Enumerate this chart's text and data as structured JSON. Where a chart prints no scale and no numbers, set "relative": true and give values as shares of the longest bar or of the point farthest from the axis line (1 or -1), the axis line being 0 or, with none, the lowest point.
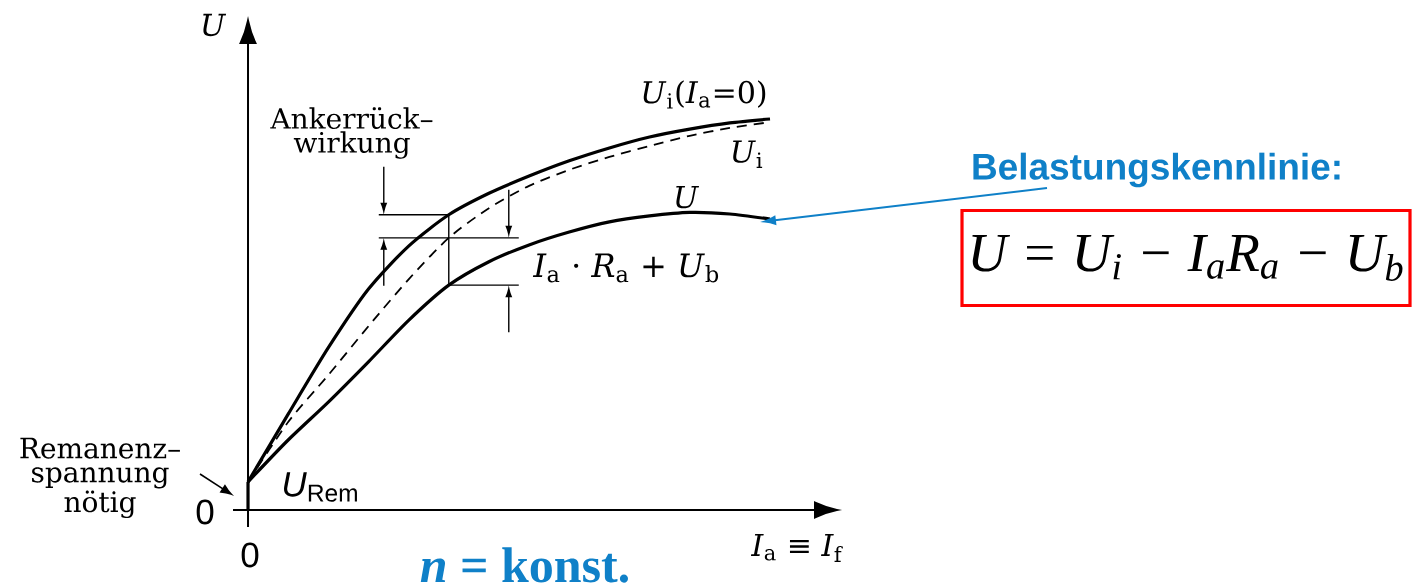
{
  "chart_data": {
    "type": "line",
    "relative": true,
    "categories": [
      null,
      null,
      null,
      null,
      null,
      null,
      null,
      null,
      null,
      null,
      null,
      null,
      null,
      null
    ],
    "series": [
      {
        "name": "*U*$_{i}$(*I*$_{a}$=0)",
        "color": "#000000",
        "line_style": "solid",
        "values": [
          0.072,
          0.245,
          0.415,
          0.565,
          0.675,
          0.755,
          0.81,
          0.854,
          0.893,
          0.926,
          0.954,
          0.974,
          0.99,
          1.0
        ]
      },
      {
        "name": "*U*$_{i}$",
        "color": "#000000",
        "line_style": "dashed",
        "values": [
          0.072,
          0.225,
          0.345,
          0.47,
          0.59,
          0.696,
          0.772,
          0.829,
          0.87,
          0.903,
          0.931,
          0.957,
          0.977,
          0.992
        ]
      },
      {
        "name": "*U*",
        "color": "#000000",
        "line_style": "solid",
        "values": [
          0.072,
          0.179,
          0.276,
          0.379,
          0.485,
          0.575,
          0.635,
          0.678,
          0.711,
          0.737,
          0.752,
          0.761,
          0.757,
          0.744
        ]
      }
    ],
    "xlabel": "*I*$_{a}$ ≡ *I*$_{f}$",
    "ylabel": "*U*",
    "annotations": [
      "0",
      "0",
      "Ankerrück– wirkung",
      "*I*$_{a}$ · *R*$_{a}$ + *U*$_{b}$",
      "Remanenz– spannung nötig",
      "*U*$_{Rem}$",
      "Belastungskennlinie:",
      "U = U$_{i}$ − I$_{a}$R$_{a}$ − U$_{b}$",
      "*n* = konst."
    ]
  }
}
